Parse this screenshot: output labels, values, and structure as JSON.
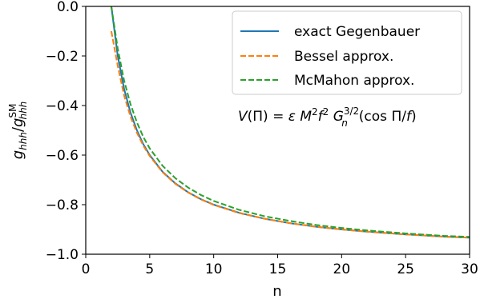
{
  "chart_data": {
    "type": "line",
    "xlabel": "n",
    "ylabel": "g_hhh / g_hhh^SM",
    "xlim": [
      0,
      30
    ],
    "ylim": [
      -1.0,
      0.0
    ],
    "xticks": [
      0,
      5,
      10,
      15,
      20,
      25,
      30
    ],
    "xtick_labels": [
      "0",
      "5",
      "10",
      "15",
      "20",
      "25",
      "30"
    ],
    "yticks": [
      0.0,
      -0.2,
      -0.4,
      -0.6,
      -0.8,
      -1.0
    ],
    "ytick_labels": [
      "0.0",
      "−0.2",
      "−0.4",
      "−0.6",
      "−0.8",
      "−1.0"
    ],
    "grid": false,
    "legend_position": "top-right",
    "annotation": "V(Π) = ε M²f² Gₙ^{3/2}(cos Π/f)",
    "series": [
      {
        "name": "exact Gegenbauer",
        "color": "#1f77b4",
        "style": "solid",
        "x": [
          2,
          2.5,
          3,
          3.5,
          4,
          4.5,
          5,
          6,
          7,
          8,
          9,
          10,
          12,
          14,
          16,
          18,
          20,
          22,
          25,
          28,
          30
        ],
        "y": [
          0.0,
          -0.2,
          -0.333,
          -0.429,
          -0.5,
          -0.556,
          -0.6,
          -0.667,
          -0.714,
          -0.75,
          -0.778,
          -0.8,
          -0.833,
          -0.857,
          -0.875,
          -0.889,
          -0.9,
          -0.909,
          -0.92,
          -0.929,
          -0.933
        ]
      },
      {
        "name": "Bessel approx.",
        "color": "#ff7f0e",
        "style": "dashed",
        "x": [
          2,
          2.5,
          3,
          3.5,
          4,
          4.5,
          5,
          6,
          7,
          8,
          9,
          10,
          12,
          14,
          16,
          18,
          20,
          22,
          25,
          28,
          30
        ],
        "y": [
          -0.1,
          -0.24,
          -0.36,
          -0.445,
          -0.51,
          -0.562,
          -0.604,
          -0.669,
          -0.716,
          -0.751,
          -0.779,
          -0.801,
          -0.834,
          -0.857,
          -0.875,
          -0.889,
          -0.9,
          -0.909,
          -0.92,
          -0.929,
          -0.933
        ]
      },
      {
        "name": "McMahon approx.",
        "color": "#2ca02c",
        "style": "dashed",
        "x": [
          2,
          2.5,
          3,
          3.5,
          4,
          4.5,
          5,
          6,
          7,
          8,
          9,
          10,
          12,
          14,
          16,
          18,
          20,
          22,
          25,
          28,
          30
        ],
        "y": [
          0.0,
          -0.17,
          -0.3,
          -0.395,
          -0.468,
          -0.527,
          -0.573,
          -0.643,
          -0.693,
          -0.731,
          -0.761,
          -0.785,
          -0.821,
          -0.847,
          -0.866,
          -0.882,
          -0.894,
          -0.904,
          -0.916,
          -0.926,
          -0.93
        ]
      }
    ]
  }
}
